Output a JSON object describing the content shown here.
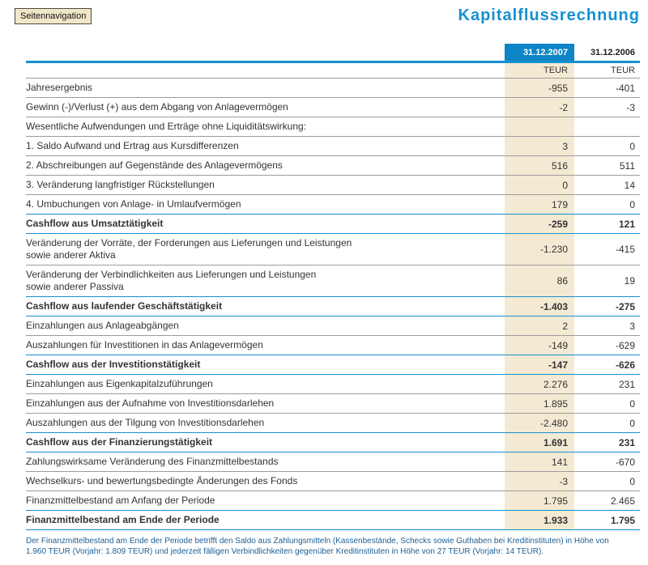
{
  "page": {
    "nav_button": "Seitennavigation",
    "title": "Kapitalflussrechnung"
  },
  "colors": {
    "accent_blue": "#1590d0",
    "header_blue": "#0e85c6",
    "column_highlight_beige": "#f4ead3",
    "nav_button_beige": "#f0e7c9",
    "footnote_blue": "#1c5f94"
  },
  "table": {
    "columns": [
      {
        "label": "31.12.2007",
        "unit": "TEUR"
      },
      {
        "label": "31.12.2006",
        "unit": "TEUR"
      }
    ],
    "rows": [
      {
        "label": "Jahresergebnis",
        "v2007": "-955",
        "v2006": "-401",
        "style": "normal"
      },
      {
        "label": "Gewinn (-)/Verlust (+) aus dem Abgang von Anlagevermögen",
        "v2007": "-2",
        "v2006": "-3",
        "style": "normal"
      },
      {
        "label": "Wesentliche Aufwendungen und Erträge ohne Liquiditätswirkung:",
        "v2007": "",
        "v2006": "",
        "style": "normal"
      },
      {
        "label": "1. Saldo Aufwand und Ertrag aus Kursdifferenzen",
        "v2007": "3",
        "v2006": "0",
        "style": "normal"
      },
      {
        "label": "2. Abschreibungen auf Gegenstände des Anlagevermögens",
        "v2007": "516",
        "v2006": "511",
        "style": "normal"
      },
      {
        "label": "3. Veränderung langfristiger Rückstellungen",
        "v2007": "0",
        "v2006": "14",
        "style": "normal"
      },
      {
        "label": "4. Umbuchungen von Anlage- in Umlaufvermögen",
        "v2007": "179",
        "v2006": "0",
        "style": "normal"
      },
      {
        "label": "Cashflow aus Umsatztätigkeit",
        "v2007": "-259",
        "v2006": "121",
        "style": "subtotal"
      },
      {
        "label": "Veränderung der Vorräte, der Forderungen aus Lieferungen und Leistungen\nsowie anderer Aktiva",
        "v2007": "-1.230",
        "v2006": "-415",
        "style": "normal"
      },
      {
        "label": "Veränderung der Verbindlichkeiten aus Lieferungen und Leistungen\nsowie anderer Passiva",
        "v2007": "86",
        "v2006": "19",
        "style": "normal"
      },
      {
        "label": "Cashflow aus laufender Geschäftstätigkeit",
        "v2007": "-1.403",
        "v2006": "-275",
        "style": "subtotal"
      },
      {
        "label": "Einzahlungen aus Anlageabgängen",
        "v2007": "2",
        "v2006": "3",
        "style": "normal"
      },
      {
        "label": "Auszahlungen für Investitionen in das Anlagevermögen",
        "v2007": "-149",
        "v2006": "-629",
        "style": "normal"
      },
      {
        "label": "Cashflow aus der Investitionstätigkeit",
        "v2007": "-147",
        "v2006": "-626",
        "style": "subtotal"
      },
      {
        "label": "Einzahlungen aus Eigenkapitalzuführungen",
        "v2007": "2.276",
        "v2006": "231",
        "style": "normal"
      },
      {
        "label": "Einzahlungen aus der Aufnahme von Investitionsdarlehen",
        "v2007": "1.895",
        "v2006": "0",
        "style": "normal"
      },
      {
        "label": "Auszahlungen aus der Tilgung von Investitionsdarlehen",
        "v2007": "-2.480",
        "v2006": "0",
        "style": "normal"
      },
      {
        "label": "Cashflow aus der Finanzierungstätigkeit",
        "v2007": "1.691",
        "v2006": "231",
        "style": "subtotal"
      },
      {
        "label": "Zahlungswirksame Veränderung des Finanzmittelbestands",
        "v2007": "141",
        "v2006": "-670",
        "style": "normal"
      },
      {
        "label": "Wechselkurs- und bewertungsbedingte Änderungen des Fonds",
        "v2007": "-3",
        "v2006": "0",
        "style": "normal"
      },
      {
        "label": "Finanzmittelbestand am Anfang der Periode",
        "v2007": "1.795",
        "v2006": "2.465",
        "style": "normal"
      },
      {
        "label": "Finanzmittelbestand am Ende der Periode",
        "v2007": "1.933",
        "v2006": "1.795",
        "style": "subtotal"
      }
    ]
  },
  "footnote": "Der Finanzmittelbestand am Ende der Periode betrifft den Saldo aus Zahlungsmitteln (Kassenbestände, Schecks sowie Guthaben bei Kreditinstituten) in Höhe von\n1.960 TEUR (Vorjahr: 1.809 TEUR) und jederzeit fälligen Verbindlichkeiten gegenüber Kreditinstituten in Höhe von 27 TEUR (Vorjahr: 14 TEUR)."
}
